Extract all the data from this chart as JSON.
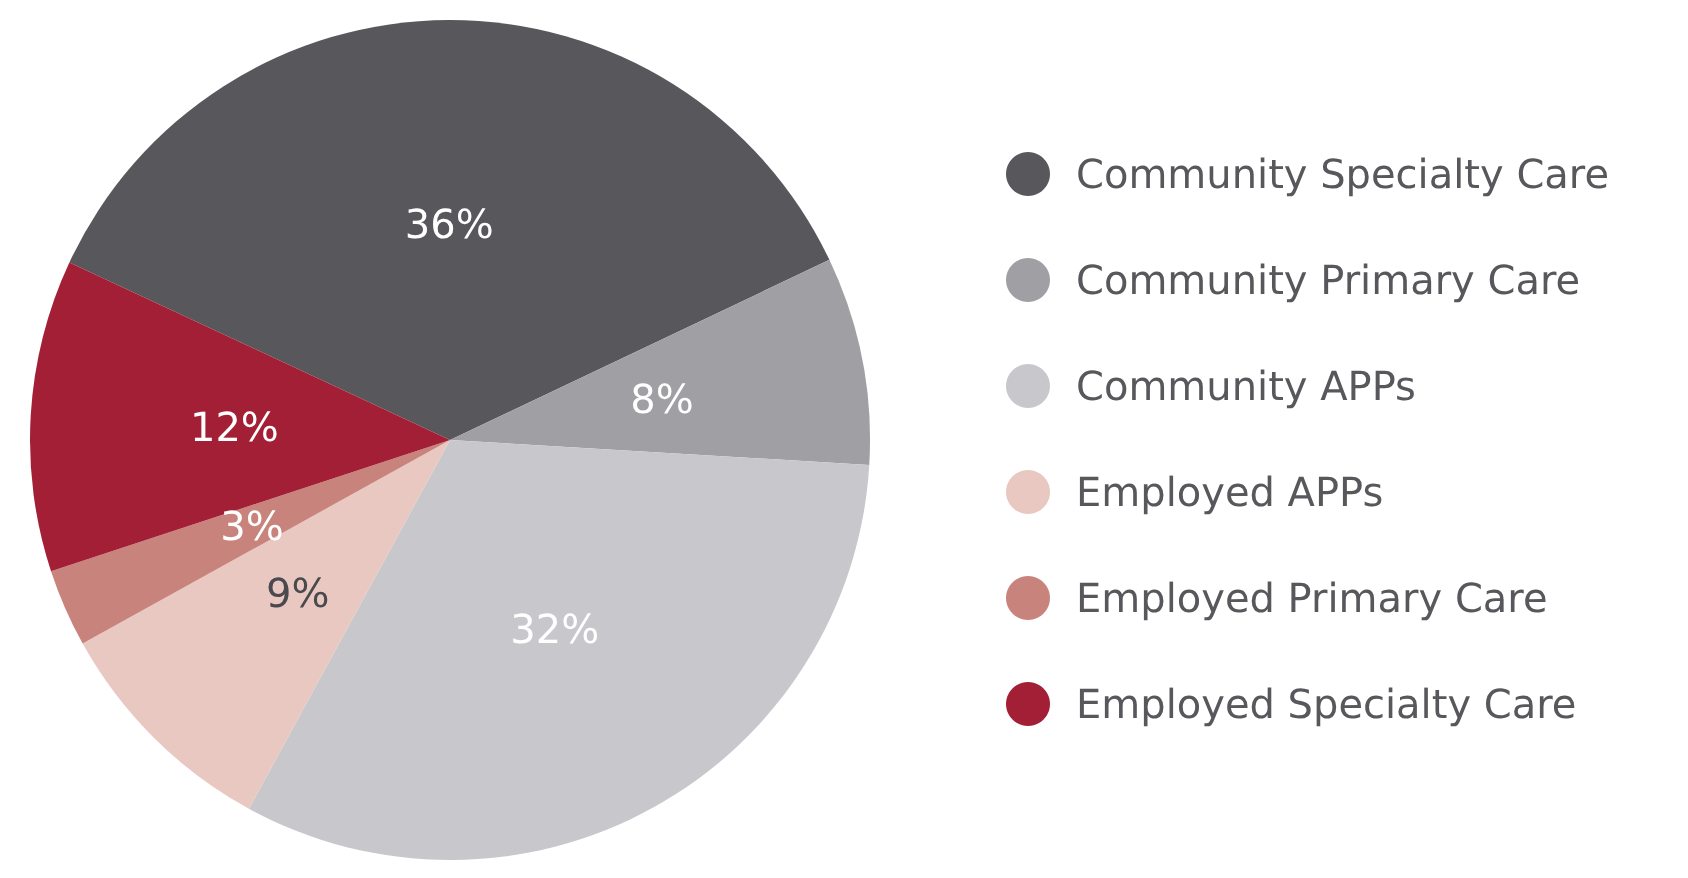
{
  "chart_data": {
    "type": "pie",
    "categories": [
      "Community Specialty Care",
      "Community Primary Care",
      "Community APPs",
      "Employed APPs",
      "Employed Primary Care",
      "Employed Specialty Care"
    ],
    "values": [
      36,
      8,
      32,
      9,
      3,
      12
    ],
    "colors": [
      "#58585c",
      "#a0a0a4",
      "#c8c8cc",
      "#e8c8c0",
      "#c8847c",
      "#a31f36"
    ],
    "value_labels": [
      "36%",
      "8%",
      "32%",
      "9%",
      "3%",
      "12%"
    ],
    "legend": "right"
  }
}
